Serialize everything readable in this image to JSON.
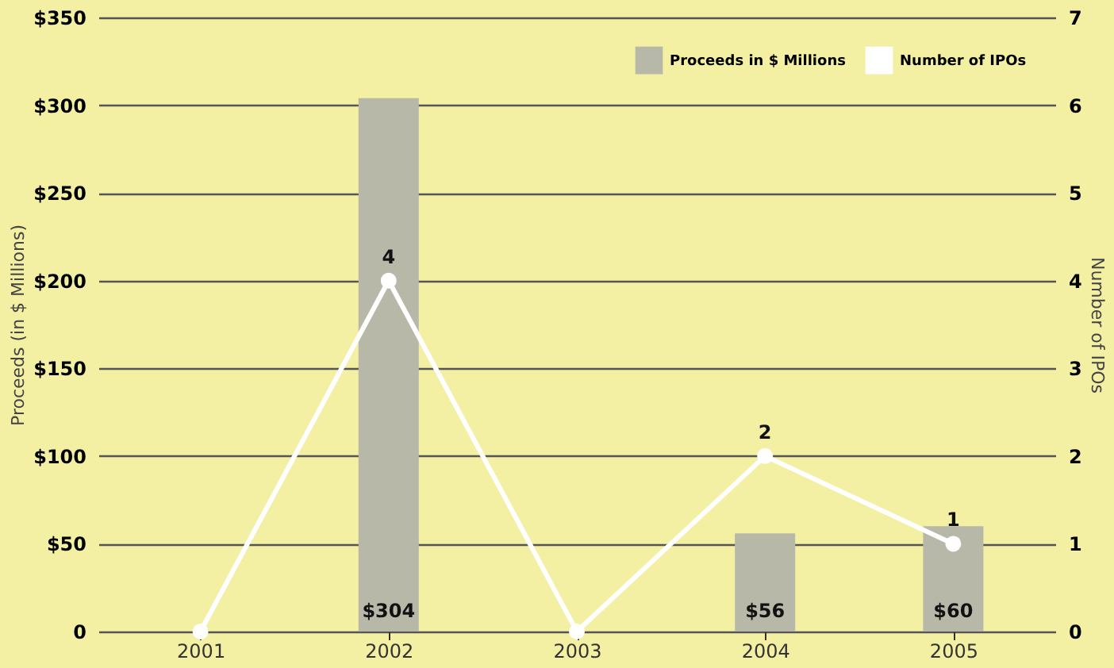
{
  "chart_data": {
    "type": "bar",
    "ylabel": "Proceeds (in $ Millions)",
    "y2label": "Number of IPOs",
    "categories": [
      "2001",
      "2002",
      "2003",
      "2004",
      "2005"
    ],
    "series": [
      {
        "name": "Proceeds in $ Millions",
        "color": "#b8b8a8",
        "values": [
          null,
          304,
          null,
          56,
          60
        ],
        "value_labels": [
          null,
          "$304",
          null,
          "$56",
          "$60"
        ]
      },
      {
        "name": "Number of IPOs",
        "type": "line",
        "axis": "y2",
        "color": "#ffffff",
        "marker": "circle",
        "values": [
          0,
          4,
          0,
          2,
          1
        ],
        "value_labels": [
          null,
          "4",
          null,
          "2",
          "1"
        ]
      }
    ],
    "ylim": [
      0,
      350
    ],
    "yticks": [
      {
        "value": 0,
        "label": "0"
      },
      {
        "value": 50,
        "label": "$50"
      },
      {
        "value": 100,
        "label": "$100"
      },
      {
        "value": 150,
        "label": "$150"
      },
      {
        "value": 200,
        "label": "$200"
      },
      {
        "value": 250,
        "label": "$250"
      },
      {
        "value": 300,
        "label": "$300"
      },
      {
        "value": 350,
        "label": "$350"
      }
    ],
    "y2lim": [
      0,
      7
    ],
    "y2ticks": [
      0,
      1,
      2,
      3,
      4,
      5,
      6,
      7
    ],
    "grid": "y",
    "legend": "top right"
  }
}
